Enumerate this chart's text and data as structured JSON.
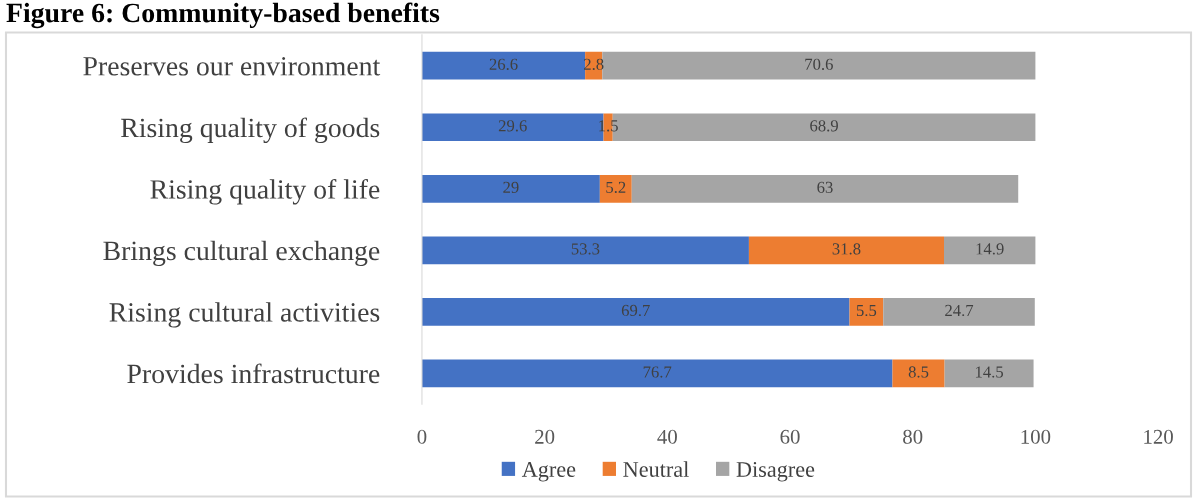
{
  "chart_data": {
    "type": "bar",
    "orientation": "horizontal",
    "stacked": true,
    "title": "Figure 6: Community-based benefits",
    "categories": [
      "Preserves our environment",
      "Rising quality of goods",
      "Rising quality of life",
      "Brings cultural exchange",
      "Rising cultural activities",
      "Provides infrastructure"
    ],
    "series": [
      {
        "name": "Agree",
        "color": "#4472c4",
        "values": [
          26.6,
          29.6,
          29,
          53.3,
          69.7,
          76.7
        ]
      },
      {
        "name": "Neutral",
        "color": "#ed7d31",
        "values": [
          2.8,
          1.5,
          5.2,
          31.8,
          5.5,
          8.5
        ]
      },
      {
        "name": "Disagree",
        "color": "#a5a5a5",
        "values": [
          70.6,
          68.9,
          63,
          14.9,
          24.7,
          14.5
        ]
      }
    ],
    "xlim": [
      0,
      120
    ],
    "xticks": [
      0,
      20,
      40,
      60,
      80,
      100,
      120
    ],
    "data_labels": true,
    "legend": "bottom",
    "grid": false
  }
}
